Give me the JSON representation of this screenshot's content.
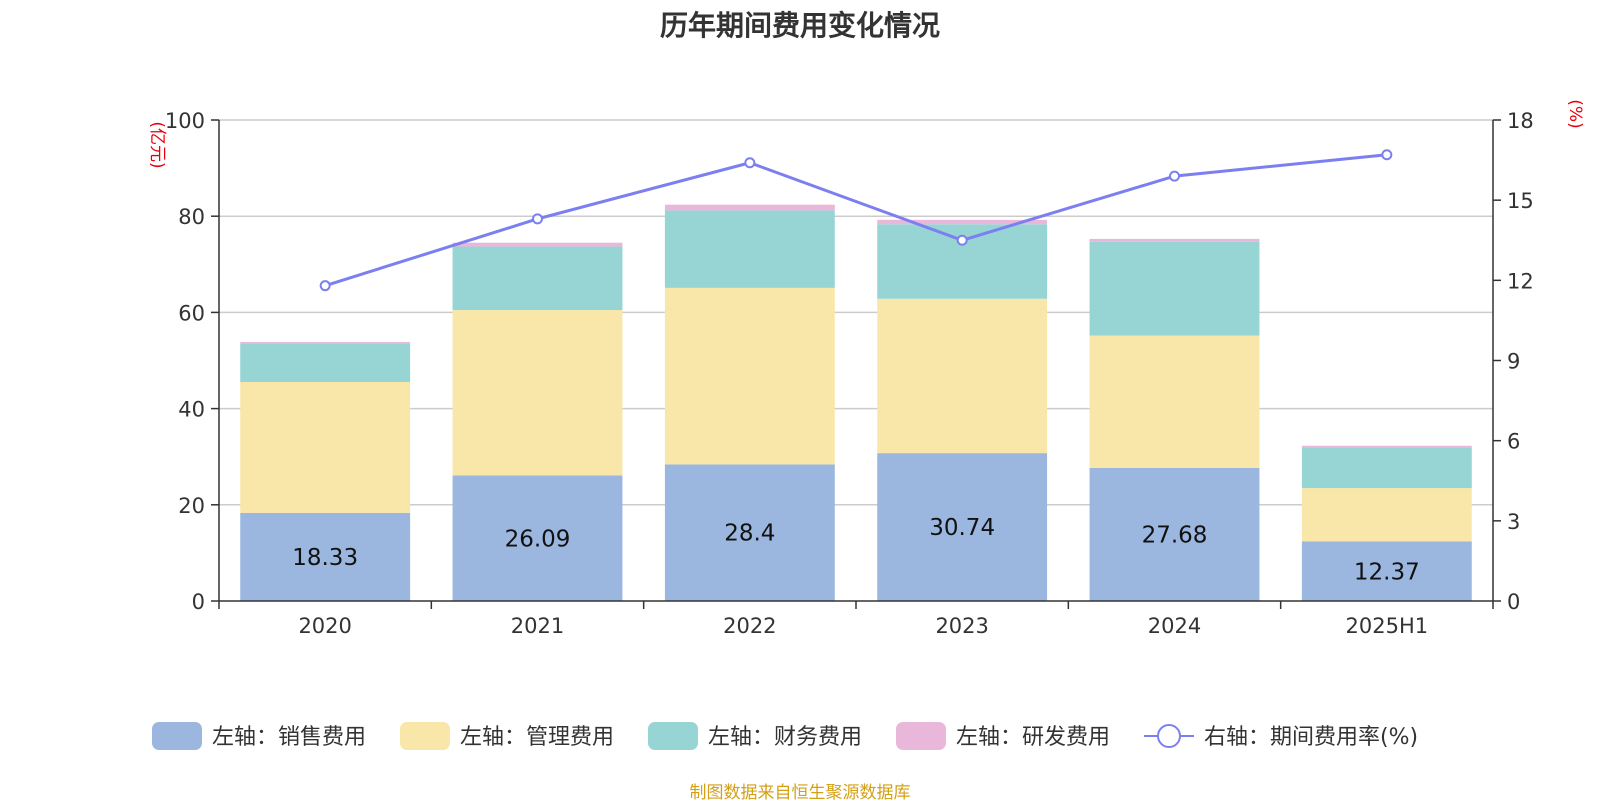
{
  "chart_data": {
    "type": "bar",
    "title": "历年期间费用变化情况",
    "categories": [
      "2020",
      "2021",
      "2022",
      "2023",
      "2024",
      "2025H1"
    ],
    "left_axis": {
      "unit": "(亿元)",
      "ylim": [
        0,
        100
      ],
      "ticks": [
        "0",
        "20",
        "40",
        "60",
        "80",
        "100"
      ]
    },
    "right_axis": {
      "unit": "(%)",
      "ylim": [
        0,
        18
      ],
      "ticks": [
        "0",
        "3",
        "6",
        "9",
        "12",
        "15",
        "18"
      ]
    },
    "series": [
      {
        "name": "左轴：销售费用",
        "type": "bar",
        "color": "#9bb7e0",
        "values": [
          18.33,
          26.09,
          28.4,
          30.74,
          27.68,
          12.37
        ],
        "labels": [
          "18.33",
          "26.09",
          "28.4",
          "30.74",
          "27.68",
          "12.37"
        ]
      },
      {
        "name": "左轴：管理费用",
        "type": "bar",
        "color": "#f8e7a8",
        "values": [
          27.2,
          34.4,
          36.7,
          32.1,
          27.5,
          11.1
        ]
      },
      {
        "name": "左轴：财务费用",
        "type": "bar",
        "color": "#97d4d4",
        "values": [
          7.9,
          13.2,
          16.1,
          15.5,
          19.5,
          8.5
        ]
      },
      {
        "name": "左轴：研发费用",
        "type": "bar",
        "color": "#e9b7d9",
        "values": [
          0.4,
          0.8,
          1.2,
          0.9,
          0.6,
          0.3
        ]
      },
      {
        "name": "右轴：期间费用率(%)",
        "type": "line",
        "color": "#7b7fef",
        "values": [
          11.8,
          14.3,
          16.4,
          13.5,
          15.9,
          16.7
        ]
      }
    ],
    "grid": true,
    "legend_position": "bottom"
  },
  "source_text": "制图数据来自恒生聚源数据库"
}
